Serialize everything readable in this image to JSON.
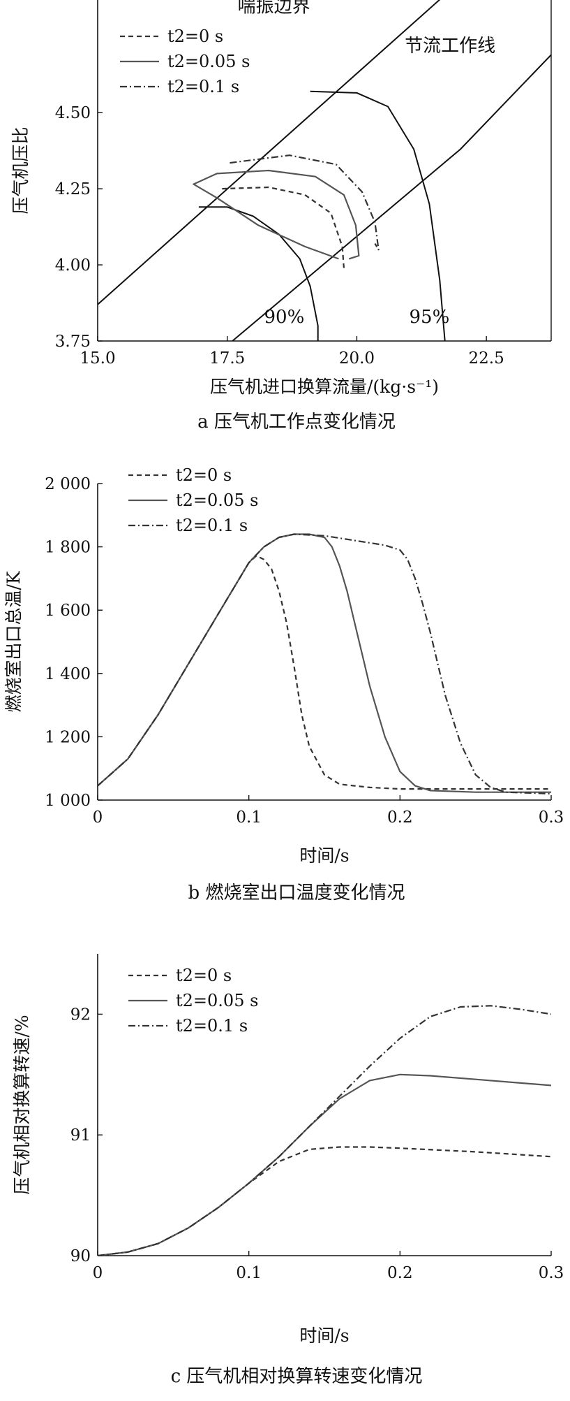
{
  "figure": {
    "panels": [
      {
        "id": "a",
        "caption": "a 压气机工作点变化情况"
      },
      {
        "id": "b",
        "caption": "b 燃烧室出口温度变化情况"
      },
      {
        "id": "c",
        "caption": "c 压气机相对换算转速变化情况"
      }
    ]
  },
  "chart_data": [
    {
      "type": "line",
      "title": "",
      "caption": "a 压气机工作点变化情况",
      "xlabel": "压气机进口换算流量/(kg·s⁻¹)",
      "ylabel": "压气机压比",
      "xlim": [
        15.0,
        23.75
      ],
      "ylim": [
        3.75,
        4.87
      ],
      "xticks": [
        "15.0",
        "17.5",
        "20.0",
        "22.5"
      ],
      "yticks": [
        "3.75",
        "4.00",
        "4.25",
        "4.50"
      ],
      "grid": false,
      "legend_position": "top-left",
      "annotations": [
        {
          "text": "喘振边界",
          "x": 18.4,
          "y": 4.83
        },
        {
          "text": "节流工作线",
          "x": 21.8,
          "y": 4.7
        },
        {
          "text": "90%",
          "x": 18.6,
          "y": 3.81
        },
        {
          "text": "95%",
          "x": 21.4,
          "y": 3.81
        }
      ],
      "reference_lines": [
        {
          "name": "喘振边界",
          "style": "solid",
          "x": [
            15.0,
            23.7
          ],
          "y": [
            3.87,
            5.19
          ]
        },
        {
          "name": "节流工作线",
          "style": "solid",
          "x": [
            17.6,
            22.0,
            23.75
          ],
          "y": [
            3.75,
            4.38,
            4.69
          ]
        },
        {
          "name": "90%",
          "style": "solid",
          "x": [
            16.95,
            17.5,
            18.0,
            18.5,
            18.9,
            19.1,
            19.25,
            19.25
          ],
          "y": [
            4.19,
            4.19,
            4.16,
            4.1,
            4.02,
            3.93,
            3.8,
            3.75
          ]
        },
        {
          "name": "95%",
          "style": "solid",
          "x": [
            19.1,
            20.0,
            20.6,
            21.1,
            21.4,
            21.6,
            21.7
          ],
          "y": [
            4.57,
            4.565,
            4.52,
            4.38,
            4.2,
            3.95,
            3.75
          ]
        }
      ],
      "series": [
        {
          "name": "t2=0 s",
          "style": "dashed",
          "x": [
            17.4,
            18.3,
            19.0,
            19.5,
            19.72,
            19.75
          ],
          "y": [
            4.25,
            4.255,
            4.23,
            4.17,
            4.06,
            3.99
          ]
        },
        {
          "name": "t2=0.05 s",
          "style": "solid",
          "x": [
            19.65,
            19.0,
            18.1,
            17.3,
            16.85,
            17.3,
            18.3,
            19.2,
            19.75,
            19.98,
            20.04,
            19.85
          ],
          "y": [
            4.02,
            4.06,
            4.13,
            4.22,
            4.265,
            4.3,
            4.31,
            4.29,
            4.23,
            4.13,
            4.03,
            4.02
          ]
        },
        {
          "name": "t2=0.1 s",
          "style": "dashdot",
          "x": [
            17.55,
            18.7,
            19.6,
            20.1,
            20.35,
            20.42,
            20.35
          ],
          "y": [
            4.335,
            4.36,
            4.33,
            4.24,
            4.14,
            4.05,
            4.07
          ]
        }
      ]
    },
    {
      "type": "line",
      "title": "",
      "caption": "b 燃烧室出口温度变化情况",
      "xlabel": "时间/s",
      "ylabel": "燃烧室出口总温/K",
      "xlim": [
        0,
        0.3
      ],
      "ylim": [
        1000,
        2000
      ],
      "xticks": [
        "0",
        "0.1",
        "0.2",
        "0.3"
      ],
      "yticks": [
        "1 000",
        "1 200",
        "1 400",
        "1 600",
        "1 800",
        "2 000"
      ],
      "grid": false,
      "legend_position": "top-left",
      "series": [
        {
          "name": "t2=0 s",
          "style": "dashed",
          "x": [
            0,
            0.02,
            0.04,
            0.06,
            0.08,
            0.1,
            0.105,
            0.11,
            0.115,
            0.12,
            0.125,
            0.13,
            0.135,
            0.14,
            0.15,
            0.16,
            0.18,
            0.2,
            0.25,
            0.3
          ],
          "y": [
            1045,
            1130,
            1270,
            1430,
            1590,
            1750,
            1772,
            1760,
            1730,
            1660,
            1560,
            1420,
            1270,
            1170,
            1080,
            1050,
            1040,
            1035,
            1035,
            1035
          ]
        },
        {
          "name": "t2=0.05 s",
          "style": "solid",
          "x": [
            0,
            0.02,
            0.04,
            0.06,
            0.08,
            0.1,
            0.11,
            0.12,
            0.13,
            0.14,
            0.15,
            0.155,
            0.16,
            0.165,
            0.17,
            0.175,
            0.18,
            0.19,
            0.2,
            0.21,
            0.22,
            0.25,
            0.3
          ],
          "y": [
            1045,
            1130,
            1270,
            1430,
            1590,
            1750,
            1800,
            1830,
            1840,
            1840,
            1830,
            1800,
            1740,
            1660,
            1560,
            1460,
            1360,
            1200,
            1090,
            1045,
            1030,
            1025,
            1025
          ]
        },
        {
          "name": "t2=0.1 s",
          "style": "dashdot",
          "x": [
            0,
            0.02,
            0.04,
            0.06,
            0.08,
            0.1,
            0.11,
            0.12,
            0.13,
            0.15,
            0.17,
            0.19,
            0.2,
            0.205,
            0.21,
            0.215,
            0.22,
            0.225,
            0.23,
            0.24,
            0.25,
            0.26,
            0.27,
            0.3
          ],
          "y": [
            1045,
            1130,
            1270,
            1430,
            1590,
            1750,
            1800,
            1830,
            1840,
            1835,
            1820,
            1805,
            1790,
            1760,
            1700,
            1620,
            1530,
            1430,
            1330,
            1180,
            1080,
            1040,
            1025,
            1020
          ]
        }
      ]
    },
    {
      "type": "line",
      "title": "",
      "caption": "c 压气机相对换算转速变化情况",
      "xlabel": "时间/s",
      "ylabel": "压气机相对换算转速/%",
      "xlim": [
        0,
        0.3
      ],
      "ylim": [
        90,
        92.5
      ],
      "xticks": [
        "0",
        "0.1",
        "0.2",
        "0.3"
      ],
      "yticks": [
        "90",
        "91",
        "92"
      ],
      "grid": false,
      "legend_position": "top-left",
      "series": [
        {
          "name": "t2=0 s",
          "style": "dashed",
          "x": [
            0,
            0.02,
            0.04,
            0.06,
            0.08,
            0.1,
            0.12,
            0.14,
            0.16,
            0.18,
            0.2,
            0.25,
            0.3
          ],
          "y": [
            90.0,
            90.03,
            90.1,
            90.23,
            90.4,
            90.6,
            90.78,
            90.88,
            90.9,
            90.9,
            90.89,
            90.86,
            90.82
          ]
        },
        {
          "name": "t2=0.05 s",
          "style": "solid",
          "x": [
            0,
            0.02,
            0.04,
            0.06,
            0.08,
            0.1,
            0.12,
            0.14,
            0.16,
            0.18,
            0.2,
            0.22,
            0.25,
            0.3
          ],
          "y": [
            90.0,
            90.03,
            90.1,
            90.23,
            90.4,
            90.6,
            90.82,
            91.07,
            91.3,
            91.45,
            91.5,
            91.49,
            91.46,
            91.41
          ]
        },
        {
          "name": "t2=0.1 s",
          "style": "dashdot",
          "x": [
            0,
            0.02,
            0.04,
            0.06,
            0.08,
            0.1,
            0.12,
            0.14,
            0.16,
            0.18,
            0.2,
            0.22,
            0.24,
            0.26,
            0.28,
            0.3
          ],
          "y": [
            90.0,
            90.03,
            90.1,
            90.23,
            90.4,
            90.6,
            90.82,
            91.07,
            91.32,
            91.57,
            91.8,
            91.98,
            92.06,
            92.07,
            92.04,
            92.0
          ]
        }
      ]
    }
  ]
}
